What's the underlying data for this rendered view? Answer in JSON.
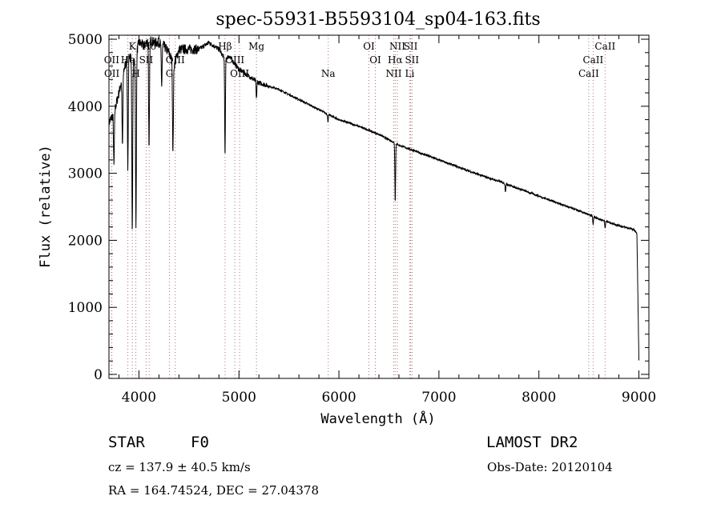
{
  "chart_data": {
    "type": "line",
    "title": "spec-55931-B5593104_sp04-163.fits",
    "xlabel": "Wavelength (Å)",
    "ylabel": "Flux (relative)",
    "xlim": [
      3700,
      9100
    ],
    "ylim": [
      -60,
      5060
    ],
    "x_ticks": [
      4000,
      5000,
      6000,
      7000,
      8000,
      9000
    ],
    "y_ticks": [
      0,
      1000,
      2000,
      3000,
      4000,
      5000
    ],
    "grid": false,
    "legend": "none",
    "series": [
      {
        "color": "#000000",
        "x": [
          3700,
          3750,
          3800,
          3850,
          3900,
          3950,
          4000,
          4050,
          4100,
          4150,
          4200,
          4250,
          4300,
          4350,
          4400,
          4500,
          4600,
          4700,
          4800,
          4861,
          4900,
          5000,
          5100,
          5200,
          5400,
          5600,
          5800,
          5890,
          6000,
          6200,
          6400,
          6563,
          6600,
          6800,
          7000,
          7200,
          7400,
          7600,
          7800,
          8000,
          8200,
          8400,
          8600,
          8800,
          8950,
          8980,
          9000
        ],
        "y": [
          3750,
          3900,
          4200,
          4550,
          4800,
          4650,
          4950,
          4900,
          5000,
          4950,
          4950,
          4900,
          4800,
          4600,
          4850,
          4850,
          4850,
          4950,
          4850,
          4700,
          4750,
          4550,
          4450,
          4350,
          4250,
          4100,
          3950,
          3880,
          3800,
          3700,
          3580,
          3450,
          3420,
          3310,
          3200,
          3090,
          2980,
          2880,
          2770,
          2660,
          2550,
          2440,
          2320,
          2220,
          2160,
          2100,
          200
        ]
      }
    ],
    "absorption_dips": [
      {
        "x": 3750,
        "y": 3100
      },
      {
        "x": 3835,
        "y": 3400
      },
      {
        "x": 3889,
        "y": 3050
      },
      {
        "x": 3933,
        "y": 2150
      },
      {
        "x": 3970,
        "y": 2150
      },
      {
        "x": 4101,
        "y": 3320
      },
      {
        "x": 4227,
        "y": 4300
      },
      {
        "x": 4340,
        "y": 3300
      },
      {
        "x": 4861,
        "y": 3230
      },
      {
        "x": 5175,
        "y": 4100
      },
      {
        "x": 5890,
        "y": 3770
      },
      {
        "x": 6563,
        "y": 2580
      },
      {
        "x": 7665,
        "y": 2730
      },
      {
        "x": 8542,
        "y": 2230
      },
      {
        "x": 8662,
        "y": 2180
      }
    ],
    "line_markers": [
      {
        "label": "Hδ",
        "x": 4102,
        "row": 0
      },
      {
        "label": "K",
        "x": 3934,
        "row": 0
      },
      {
        "label": "H",
        "x": 3969,
        "row": 2
      },
      {
        "label": "OII",
        "x": 3727,
        "row": 1
      },
      {
        "label": "OII",
        "x": 3729,
        "row": 2
      },
      {
        "label": "He",
        "x": 3889,
        "row": 1
      },
      {
        "label": "SII",
        "x": 4072,
        "row": 1
      },
      {
        "label": "G",
        "x": 4305,
        "row": 2
      },
      {
        "label": "OIII",
        "x": 4363,
        "row": 1
      },
      {
        "label": "Hβ",
        "x": 4861,
        "row": 0
      },
      {
        "label": "OIII",
        "x": 4959,
        "row": 1
      },
      {
        "label": "OIII",
        "x": 5007,
        "row": 2
      },
      {
        "label": "Mg",
        "x": 5175,
        "row": 0
      },
      {
        "label": "Na",
        "x": 5893,
        "row": 2
      },
      {
        "label": "OI",
        "x": 6300,
        "row": 0
      },
      {
        "label": "OI",
        "x": 6364,
        "row": 1
      },
      {
        "label": "NII",
        "x": 6548,
        "row": 2
      },
      {
        "label": "Hα",
        "x": 6563,
        "row": 1
      },
      {
        "label": "NII",
        "x": 6584,
        "row": 0
      },
      {
        "label": "SII",
        "x": 6717,
        "row": 0
      },
      {
        "label": "SII",
        "x": 6731,
        "row": 1
      },
      {
        "label": "Li",
        "x": 6708,
        "row": 2
      },
      {
        "label": "CaII",
        "x": 8498,
        "row": 2
      },
      {
        "label": "CaII",
        "x": 8542,
        "row": 1
      },
      {
        "label": "CaII",
        "x": 8662,
        "row": 0
      }
    ]
  },
  "info": {
    "object_class": "STAR",
    "subclass": "F0",
    "survey": "LAMOST DR2",
    "redshift": "cz = 137.9 ± 40.5 km/s",
    "obs_date": "Obs-Date: 20120104",
    "coords": "RA = 164.74524, DEC =  27.04378"
  }
}
